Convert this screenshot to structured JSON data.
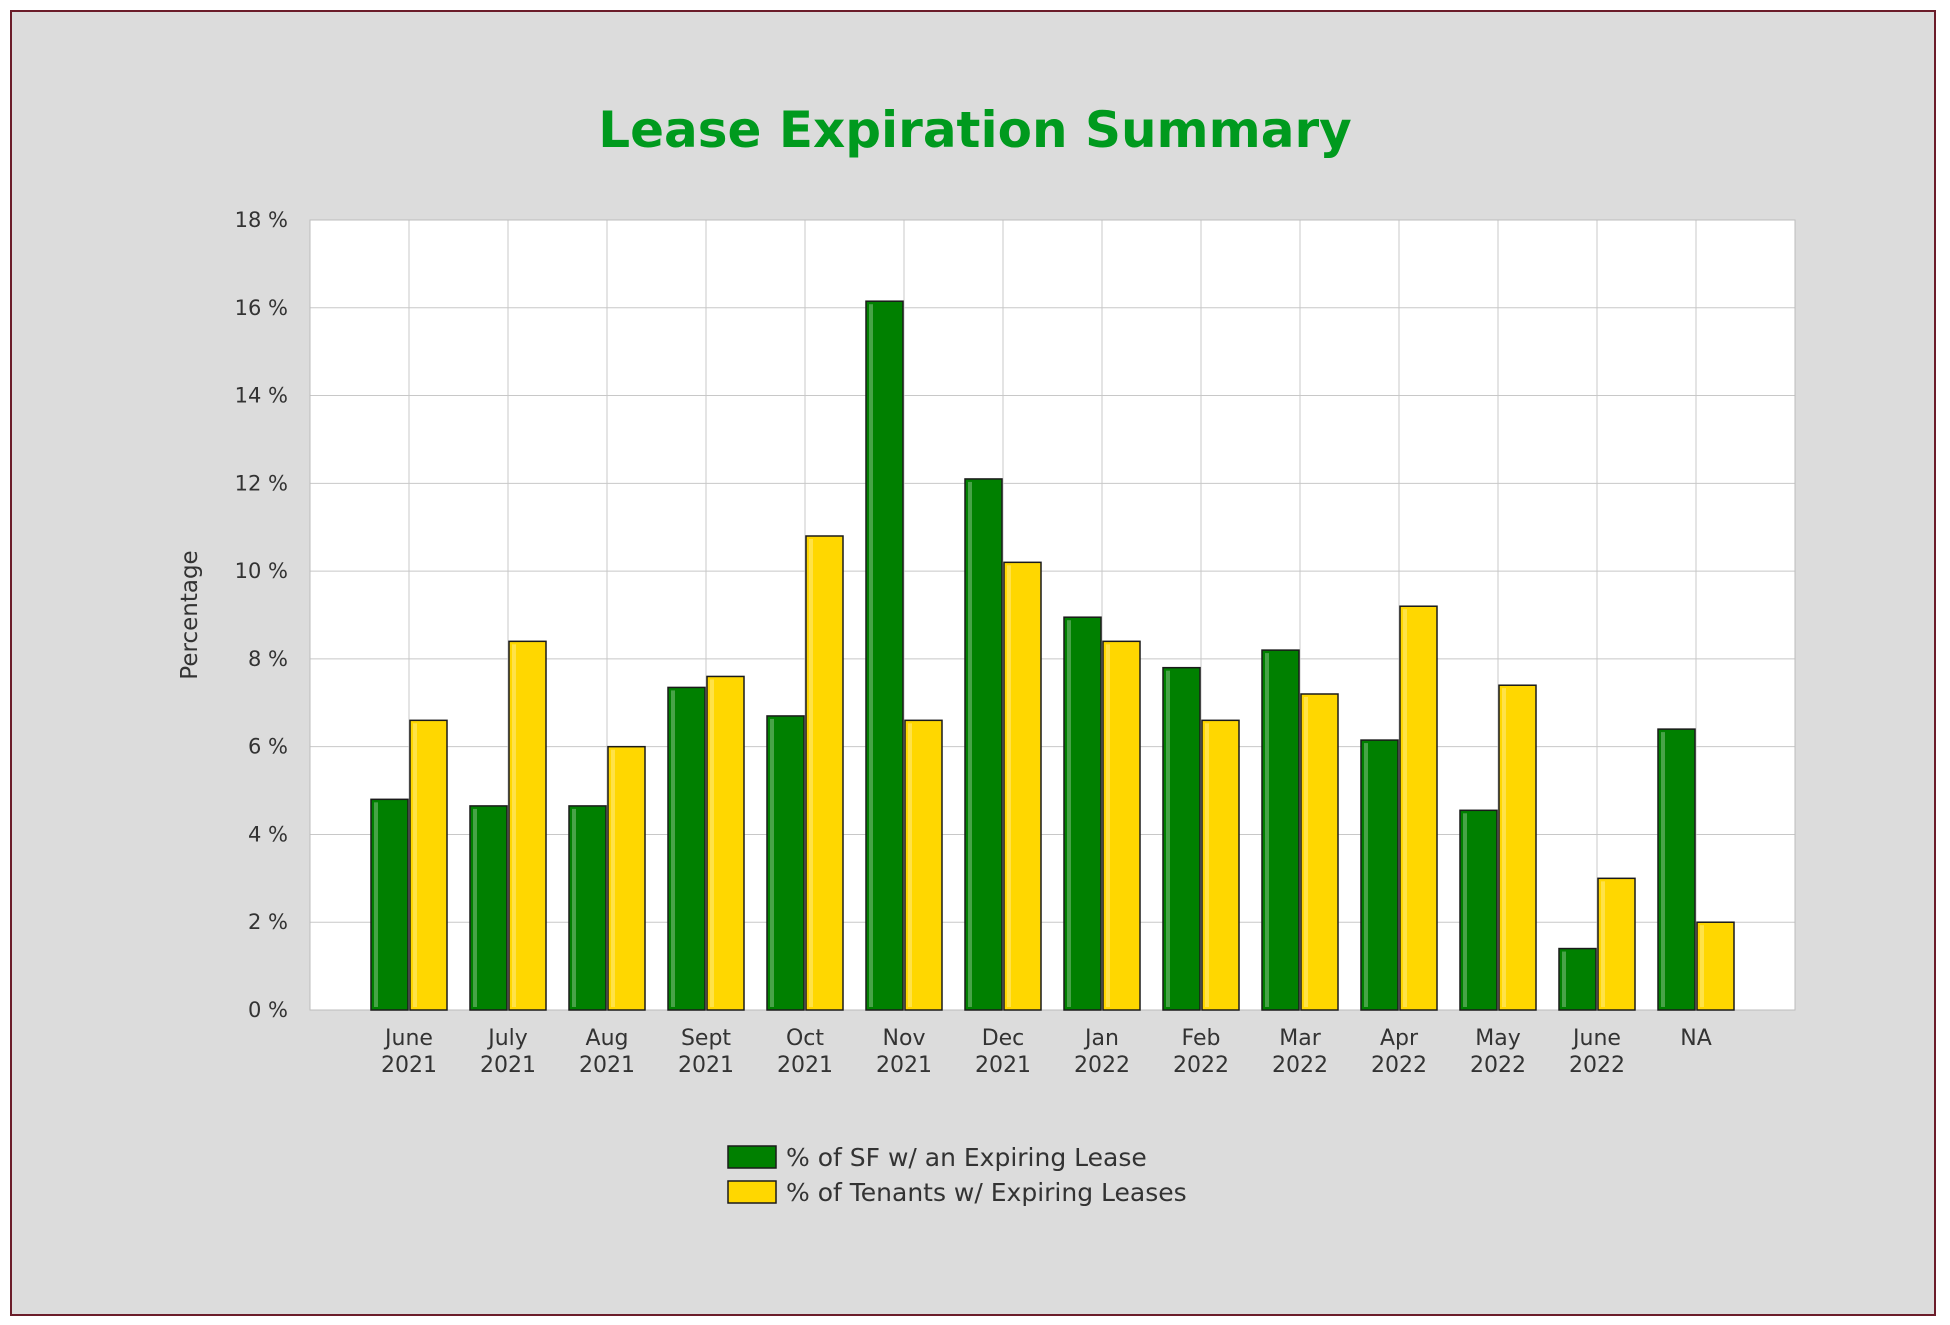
{
  "chart_data": {
    "type": "bar",
    "title": "Lease Expiration Summary",
    "ylabel": "Percentage",
    "xlabel": "",
    "ylim": [
      0,
      18
    ],
    "yticks": [
      0,
      2,
      4,
      6,
      8,
      10,
      12,
      14,
      16,
      18
    ],
    "ytick_suffix": " %",
    "grid": true,
    "legend_position": "bottom",
    "categories": [
      [
        "June",
        "2021"
      ],
      [
        "July",
        "2021"
      ],
      [
        "Aug",
        "2021"
      ],
      [
        "Sept",
        "2021"
      ],
      [
        "Oct",
        "2021"
      ],
      [
        "Nov",
        "2021"
      ],
      [
        "Dec",
        "2021"
      ],
      [
        "Jan",
        "2022"
      ],
      [
        "Feb",
        "2022"
      ],
      [
        "Mar",
        "2022"
      ],
      [
        "Apr",
        "2022"
      ],
      [
        "May",
        "2022"
      ],
      [
        "June",
        "2022"
      ],
      [
        "NA"
      ]
    ],
    "series": [
      {
        "name": "% of SF w/ an Expiring Lease",
        "color": "#008000",
        "values": [
          4.8,
          4.65,
          4.65,
          7.35,
          6.7,
          16.15,
          12.1,
          8.95,
          7.8,
          8.2,
          6.15,
          4.55,
          1.4,
          6.4
        ]
      },
      {
        "name": "% of Tenants w/ Expiring Leases",
        "color": "#ffd700",
        "values": [
          6.6,
          8.4,
          6.0,
          7.6,
          10.8,
          6.6,
          10.2,
          8.4,
          6.6,
          7.2,
          9.2,
          7.4,
          3.0,
          2.0
        ]
      }
    ]
  },
  "colors": {
    "title": "#009a1e",
    "background": "#dcdcdc",
    "plot_background": "#ffffff",
    "gridline": "#c8c8c8",
    "frame_border": "#6b1d2a"
  }
}
